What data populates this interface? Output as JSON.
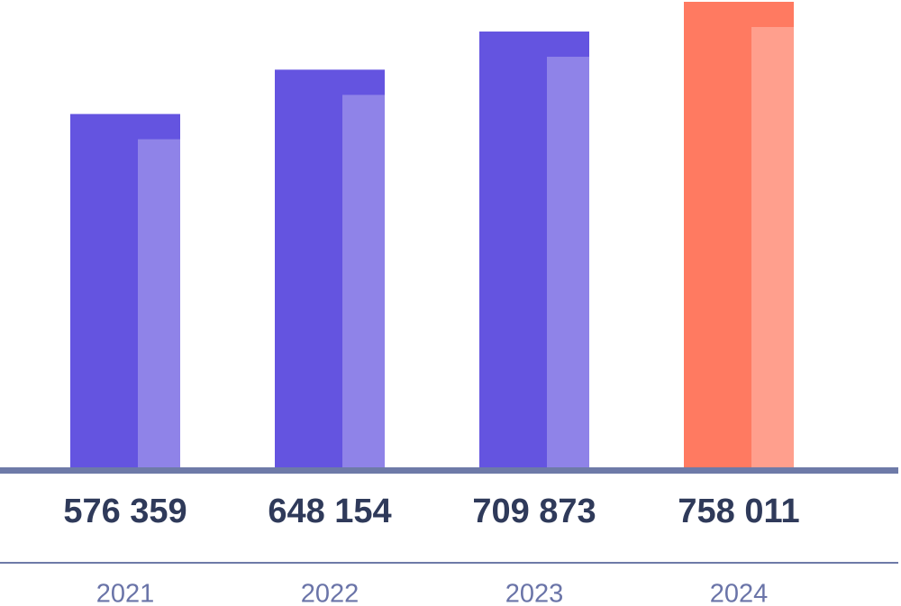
{
  "chart_data": {
    "type": "bar",
    "categories": [
      "2021",
      "2022",
      "2023",
      "2024"
    ],
    "values": [
      576359,
      648154,
      709873,
      758011
    ],
    "value_labels": [
      "576 359",
      "648 154",
      "709 873",
      "758 011"
    ],
    "colors": [
      "#6454e0",
      "#6454e0",
      "#6454e0",
      "#ff7a61"
    ]
  }
}
